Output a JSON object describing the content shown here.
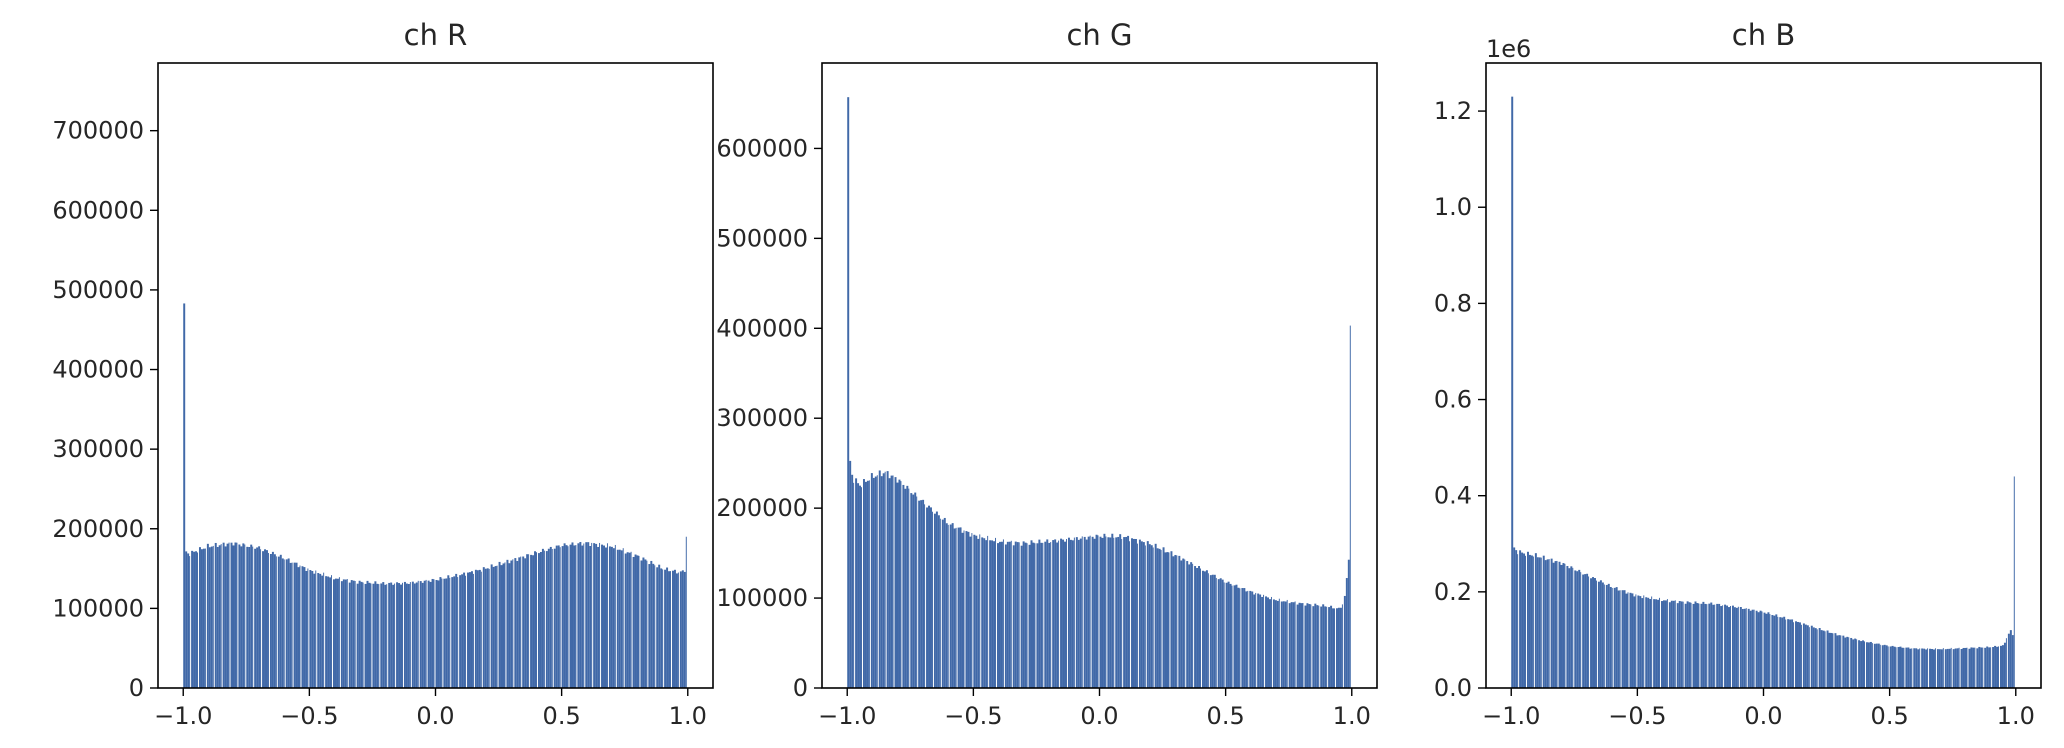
{
  "bar_color": "#4169a8",
  "chart_data": [
    {
      "type": "bar",
      "title": "ch R",
      "xlim": [
        -1.1,
        1.1
      ],
      "ylim": [
        0,
        785000
      ],
      "y_offset_label": "",
      "xticks": [
        -1.0,
        -0.5,
        0.0,
        0.5,
        1.0
      ],
      "xtick_labels": [
        "−1.0",
        "−0.5",
        "0.0",
        "0.5",
        "1.0"
      ],
      "yticks": [
        0,
        100000,
        200000,
        300000,
        400000,
        500000,
        600000,
        700000
      ],
      "ytick_labels": [
        "0",
        "100000",
        "200000",
        "300000",
        "400000",
        "500000",
        "600000",
        "700000"
      ],
      "bins": 256,
      "profile": {
        "x": [
          -1.0,
          -0.98,
          -0.9,
          -0.8,
          -0.7,
          -0.6,
          -0.5,
          -0.4,
          -0.3,
          -0.2,
          -0.1,
          0.0,
          0.1,
          0.2,
          0.3,
          0.4,
          0.5,
          0.6,
          0.7,
          0.8,
          0.9,
          0.97,
          1.0
        ],
        "y": [
          175000,
          168000,
          178000,
          182000,
          176000,
          163000,
          148000,
          138000,
          133000,
          131000,
          132000,
          136000,
          142000,
          150000,
          160000,
          170000,
          179000,
          182000,
          178000,
          166000,
          150000,
          145000,
          150000
        ]
      },
      "spikes": [
        {
          "x": -0.996,
          "y": 483000
        },
        {
          "x": 0.996,
          "y": 190000
        }
      ]
    },
    {
      "type": "bar",
      "title": "ch G",
      "xlim": [
        -1.1,
        1.1
      ],
      "ylim": [
        0,
        695000
      ],
      "y_offset_label": "",
      "xticks": [
        -1.0,
        -0.5,
        0.0,
        0.5,
        1.0
      ],
      "xtick_labels": [
        "−1.0",
        "−0.5",
        "0.0",
        "0.5",
        "1.0"
      ],
      "yticks": [
        0,
        100000,
        200000,
        300000,
        400000,
        500000,
        600000
      ],
      "ytick_labels": [
        "0",
        "100000",
        "200000",
        "300000",
        "400000",
        "500000",
        "600000"
      ],
      "bins": 256,
      "profile": {
        "x": [
          -1.0,
          -0.98,
          -0.95,
          -0.9,
          -0.85,
          -0.8,
          -0.7,
          -0.6,
          -0.5,
          -0.4,
          -0.3,
          -0.2,
          -0.1,
          0.0,
          0.1,
          0.2,
          0.3,
          0.4,
          0.5,
          0.6,
          0.7,
          0.8,
          0.9,
          0.95,
          0.97,
          0.98,
          0.99,
          1.0
        ],
        "y": [
          275000,
          235000,
          225000,
          235000,
          240000,
          232000,
          207000,
          183000,
          170000,
          163000,
          161000,
          163000,
          166000,
          169000,
          168000,
          160000,
          148000,
          133000,
          118000,
          107000,
          98000,
          94000,
          91000,
          88000,
          95000,
          120000,
          150000,
          160000
        ]
      },
      "spikes": [
        {
          "x": -0.996,
          "y": 657000
        },
        {
          "x": 0.996,
          "y": 403000
        }
      ]
    },
    {
      "type": "bar",
      "title": "ch B",
      "xlim": [
        -1.1,
        1.1
      ],
      "ylim": [
        0,
        1.3
      ],
      "y_offset_label": "1e6",
      "xticks": [
        -1.0,
        -0.5,
        0.0,
        0.5,
        1.0
      ],
      "xtick_labels": [
        "−1.0",
        "−0.5",
        "0.0",
        "0.5",
        "1.0"
      ],
      "yticks": [
        0.0,
        0.2,
        0.4,
        0.6,
        0.8,
        1.0,
        1.2
      ],
      "ytick_labels": [
        "0.0",
        "0.2",
        "0.4",
        "0.6",
        "0.8",
        "1.0",
        "1.2"
      ],
      "bins": 256,
      "profile": {
        "x": [
          -1.0,
          -0.98,
          -0.95,
          -0.9,
          -0.8,
          -0.7,
          -0.6,
          -0.5,
          -0.4,
          -0.3,
          -0.2,
          -0.1,
          0.0,
          0.1,
          0.2,
          0.3,
          0.4,
          0.5,
          0.6,
          0.7,
          0.8,
          0.9,
          0.95,
          0.98,
          1.0
        ],
        "y": [
          0.3,
          0.285,
          0.28,
          0.275,
          0.26,
          0.235,
          0.21,
          0.192,
          0.183,
          0.178,
          0.175,
          0.168,
          0.158,
          0.143,
          0.126,
          0.11,
          0.097,
          0.087,
          0.082,
          0.081,
          0.083,
          0.085,
          0.088,
          0.12,
          0.1
        ]
      },
      "spikes": [
        {
          "x": -0.996,
          "y": 1.23
        },
        {
          "x": 0.996,
          "y": 0.44
        }
      ]
    }
  ]
}
